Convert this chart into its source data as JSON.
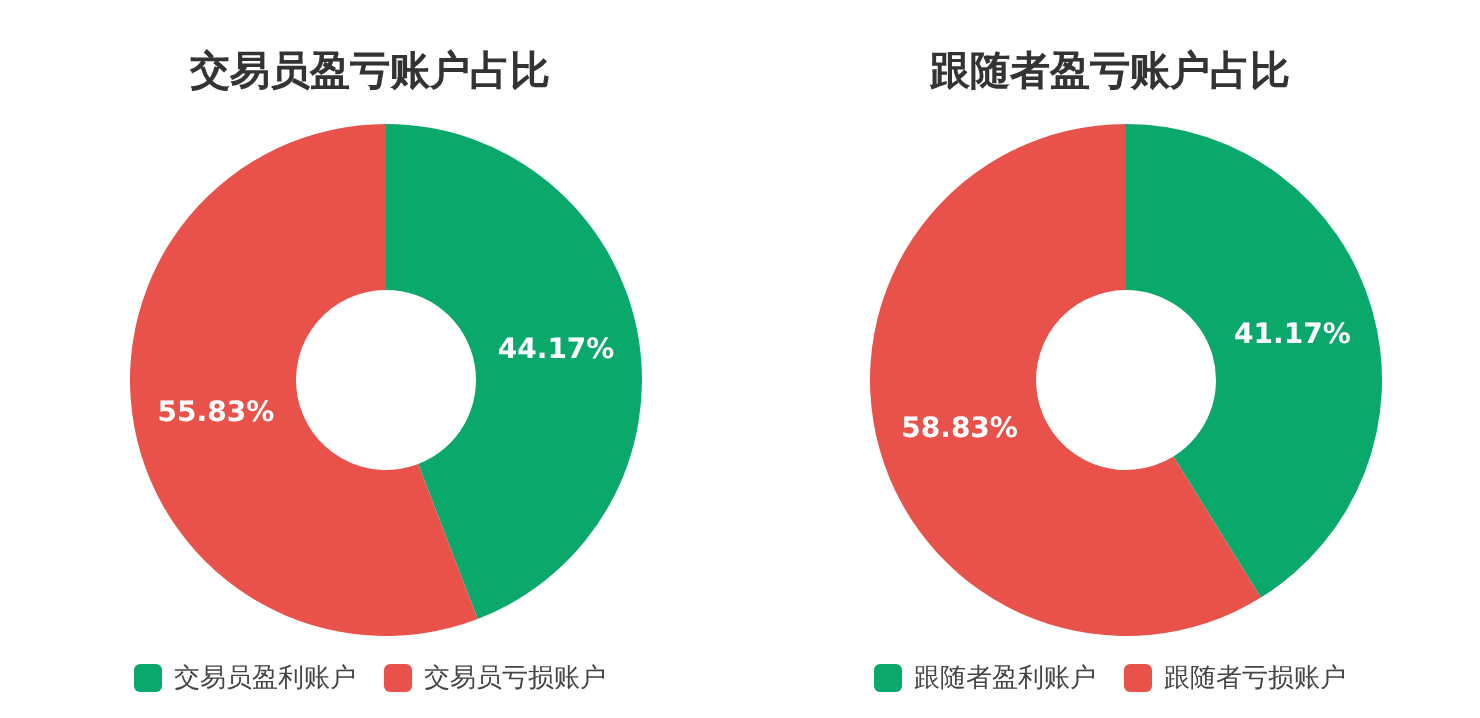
{
  "chart_data": [
    {
      "type": "donut",
      "title": "交易员盈亏账户占比",
      "categories": [
        "交易员盈利账户",
        "交易员亏损账户"
      ],
      "values": [
        44.17,
        55.83
      ],
      "colors": [
        "#0aa86a",
        "#e8524a"
      ],
      "value_labels": [
        "44.17%",
        "55.83%"
      ],
      "legend": "bottom"
    },
    {
      "type": "donut",
      "title": "跟随者盈亏账户占比",
      "categories": [
        "跟随者盈利账户",
        "跟随者亏损账户"
      ],
      "values": [
        41.17,
        58.83
      ],
      "colors": [
        "#0aa86a",
        "#e8524a"
      ],
      "value_labels": [
        "41.17%",
        "58.83%"
      ],
      "legend": "bottom"
    }
  ]
}
